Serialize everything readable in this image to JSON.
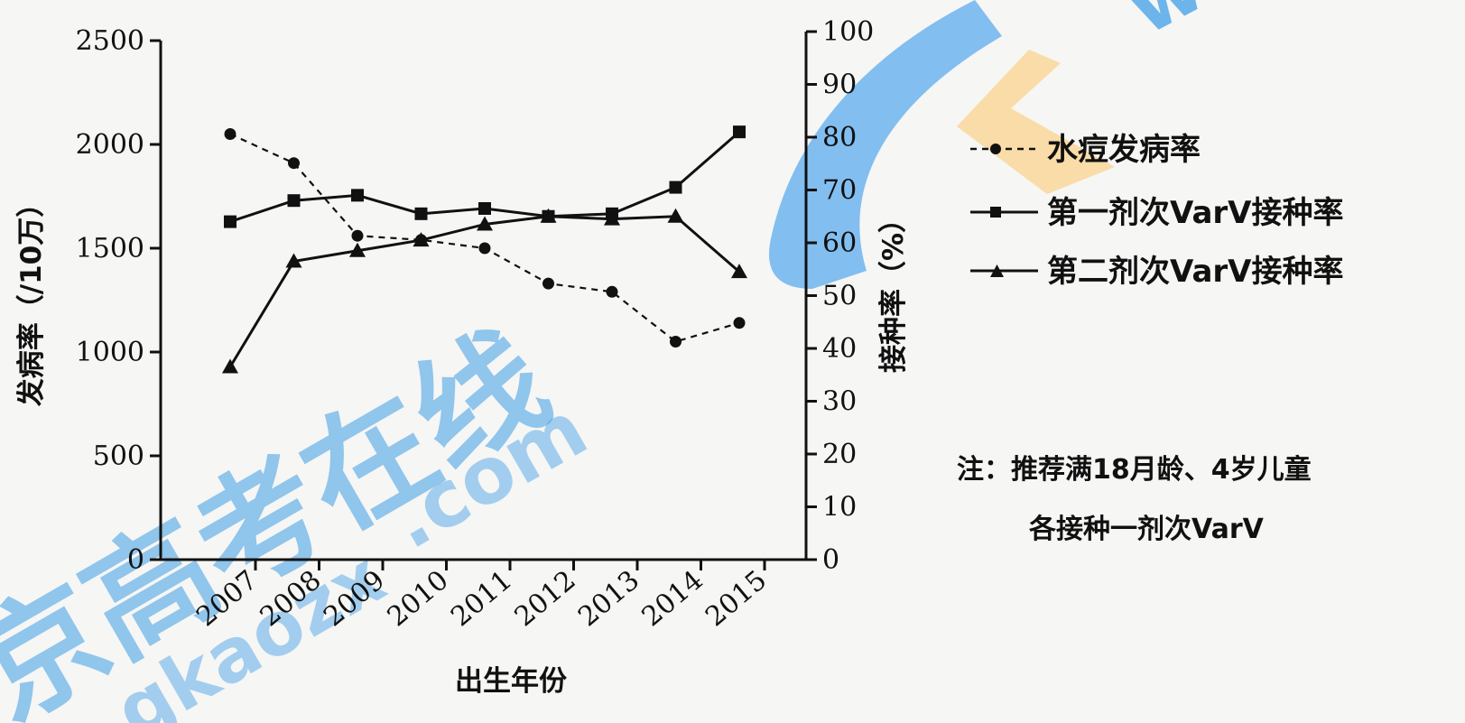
{
  "chart_data": {
    "type": "line",
    "categories": [
      "2007",
      "2008",
      "2009",
      "2010",
      "2011",
      "2012",
      "2013",
      "2014",
      "2015"
    ],
    "xlabel": "出生年份",
    "ylabel_left": "发病率（/10万）",
    "ylabel_right": "接种率（%）",
    "ylim_left": [
      0,
      2500
    ],
    "ylim_right": [
      0,
      100
    ],
    "yticks_left": [
      "0",
      "500",
      "1000",
      "1500",
      "2000",
      "2500"
    ],
    "yticks_right": [
      "0",
      "10",
      "20",
      "30",
      "40",
      "50",
      "60",
      "70",
      "80",
      "90",
      "100"
    ],
    "series": [
      {
        "name": "水痘发病率",
        "axis": "left",
        "style": "dashed",
        "marker": "circle",
        "values": [
          2050,
          1910,
          1560,
          1540,
          1500,
          1330,
          1290,
          1050,
          1140
        ]
      },
      {
        "name": "第一剂次VarV接种率",
        "axis": "right",
        "style": "solid",
        "marker": "square",
        "values": [
          64,
          68,
          69,
          65.5,
          66.5,
          65,
          65.5,
          70.5,
          81
        ]
      },
      {
        "name": "第二剂次VarV接种率",
        "axis": "right",
        "style": "solid",
        "marker": "triangle",
        "values": [
          36.5,
          56.5,
          58.5,
          60.5,
          63.5,
          65,
          64.5,
          65,
          54.5
        ]
      }
    ],
    "note_lines": [
      "注：推荐满18月龄、4岁儿童",
      "各接种一剂次VarV"
    ],
    "grid": false,
    "legend_position": "right"
  },
  "watermark": {
    "chinese": "京高考在线",
    "url": ".com",
    "url_prefix": "gkaozx",
    "top_right": "www.g"
  },
  "colors": {
    "ink": "#111111",
    "watermark_blue": "#1c8de4",
    "watermark_orange": "#f9d48e"
  }
}
